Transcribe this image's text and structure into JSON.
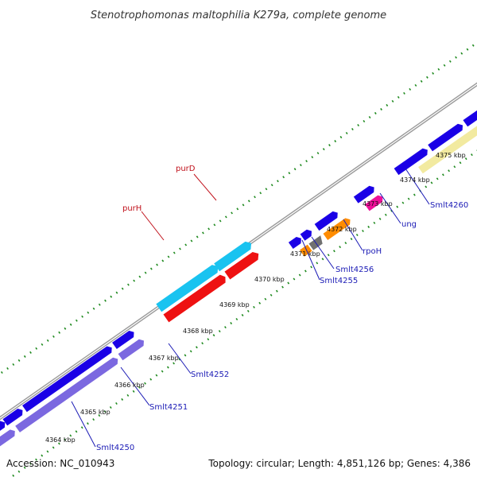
{
  "title": "Stenotrophomonas maltophilia K279a, complete genome",
  "footer": {
    "accession": "Accession: NC_010943",
    "topology": "Topology: circular; Length: 4,851,126 bp; Genes: 4,386"
  },
  "ticks": [
    {
      "label": "4364 kbp"
    },
    {
      "label": "4365 kbp"
    },
    {
      "label": "4366 kbp"
    },
    {
      "label": "4367 kbp"
    },
    {
      "label": "4368 kbp"
    },
    {
      "label": "4369 kbp"
    },
    {
      "label": "4370 kbp"
    },
    {
      "label": "4371 kbp"
    },
    {
      "label": "4372 kbp"
    },
    {
      "label": "4373 kbp"
    },
    {
      "label": "4374 kbp"
    },
    {
      "label": "4375 kbp"
    }
  ],
  "gene_labels": [
    {
      "id": "smlt4250",
      "text": "Smlt4250",
      "color": "#1a1ab5"
    },
    {
      "id": "smlt4251",
      "text": "Smlt4251",
      "color": "#1a1ab5"
    },
    {
      "id": "smlt4252",
      "text": "Smlt4252",
      "color": "#1a1ab5"
    },
    {
      "id": "purH",
      "text": "purH",
      "color": "#c0101a"
    },
    {
      "id": "purD",
      "text": "purD",
      "color": "#c0101a"
    },
    {
      "id": "smlt4255",
      "text": "Smlt4255",
      "color": "#1a1ab5"
    },
    {
      "id": "smlt4256",
      "text": "Smlt4256",
      "color": "#1a1ab5"
    },
    {
      "id": "rpoH",
      "text": "rpoH",
      "color": "#1a1ab5"
    },
    {
      "id": "ung",
      "text": "ung",
      "color": "#1a1ab5"
    },
    {
      "id": "smlt4260",
      "text": "Smlt4260",
      "color": "#1a1ab5"
    }
  ],
  "colors": {
    "cds_blue": "#1a00e6",
    "cds_lavender": "#7b68e0",
    "purH_cyan": "#19c3f0",
    "purD_red": "#ee1111",
    "orange": "#ff8c00",
    "gray": "#707070",
    "magenta": "#ee1199",
    "pale_yellow": "#f2eaa0",
    "backbone": "#888888",
    "gc_dots": "#1f8a1f"
  }
}
